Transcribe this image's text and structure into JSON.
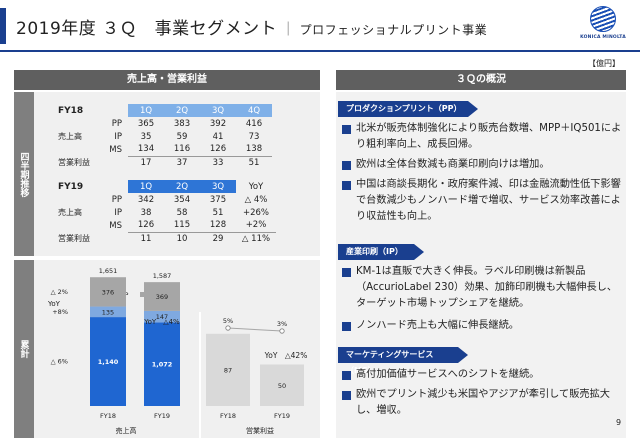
{
  "header": {
    "title": "2019年度 ３Ｑ　事業セグメント",
    "separator": "｜",
    "subtitle": "プロフェッショナルプリント事業",
    "logo_text": "KONICA MINOLTA"
  },
  "unit_label": "【億円】",
  "left": {
    "heading": "売上高・営業利益",
    "quarterly_label": "四半期推移",
    "cumulative_label": "累計",
    "fy18": {
      "label": "FY18",
      "quarters": [
        "1Q",
        "2Q",
        "3Q",
        "4Q"
      ],
      "sales_label": "売上高",
      "rows": [
        {
          "seg": "PP",
          "values": [
            "365",
            "383",
            "392",
            "416"
          ]
        },
        {
          "seg": "IP",
          "values": [
            "35",
            "59",
            "41",
            "73"
          ]
        },
        {
          "seg": "MS",
          "values": [
            "134",
            "116",
            "126",
            "138"
          ]
        }
      ],
      "op_label": "営業利益",
      "op_values": [
        "17",
        "37",
        "33",
        "51"
      ]
    },
    "fy19": {
      "label": "FY19",
      "quarters": [
        "1Q",
        "2Q",
        "3Q"
      ],
      "yoy_label": "YoY",
      "sales_label": "売上高",
      "rows": [
        {
          "seg": "PP",
          "values": [
            "342",
            "354",
            "375"
          ],
          "yoy": "△ 4%"
        },
        {
          "seg": "IP",
          "values": [
            "38",
            "58",
            "51"
          ],
          "yoy": "+26%"
        },
        {
          "seg": "MS",
          "values": [
            "126",
            "115",
            "128"
          ],
          "yoy": "+2%"
        }
      ],
      "op_label": "営業利益",
      "op_values": [
        "11",
        "10",
        "29"
      ],
      "op_yoy": "△ 11%"
    }
  },
  "chart_data": {
    "type": "bar",
    "legend": [
      "PP",
      "IP",
      "MS"
    ],
    "legend_position": "top-left",
    "colors": {
      "PP": "#1f66d1",
      "IP": "#7fa9e0",
      "MS": "#a6a6a6",
      "op": "#d9d9d9"
    },
    "sales": {
      "group_label": "売上高",
      "categories": [
        "FY18",
        "FY19"
      ],
      "series": [
        {
          "name": "PP",
          "values": [
            1140,
            1072
          ]
        },
        {
          "name": "IP",
          "values": [
            135,
            147
          ]
        },
        {
          "name": "MS",
          "values": [
            376,
            369
          ]
        }
      ],
      "totals": [
        "1,651",
        "1,587"
      ],
      "yoy_label": "YoY",
      "yoy_total": "YoY　△4%",
      "yoy_segments": [
        "△ 2%",
        "+8%",
        "△ 6%"
      ]
    },
    "operating_profit": {
      "group_label": "営業利益",
      "categories": [
        "FY18",
        "FY19"
      ],
      "values": [
        87,
        50
      ],
      "margins": [
        "5%",
        "3%"
      ],
      "yoy": "YoY　△42%"
    }
  },
  "right": {
    "heading": "３Ｑの概況",
    "sections": [
      {
        "tag": "プロダクションプリント（PP）",
        "bullets": [
          "北米が販売体制強化により販売台数増、MPP＋IQ501により粗利率向上、成長回帰。",
          "欧州は全体台数減も商業印刷向けは増加。",
          "中国は商談長期化・政府案件減、印は金融流動性低下影響で台数減少もノンハード増で増収、サービス効率改善により収益性も向上。"
        ]
      },
      {
        "tag": "産業印刷（IP）",
        "bullets": [
          "KM-1は直販で大きく伸長。ラベル印刷機は新製品（AccurioLabel 230）効果、加飾印刷機も大幅伸長し、ターゲット市場トップシェアを継続。",
          "ノンハード売上も大幅に伸長継続。"
        ]
      },
      {
        "tag": "マーケティングサービス（MS）",
        "bullets": [
          "高付加価値サービスへのシフトを継続。",
          "欧州でプリント減少も米国やアジアが牽引して販売拡大し、増収。"
        ]
      }
    ]
  },
  "page_number": "9"
}
